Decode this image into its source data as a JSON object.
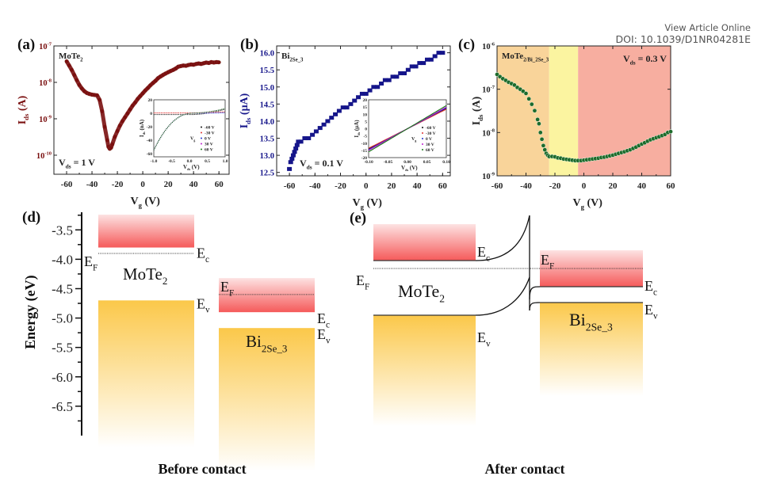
{
  "header": {
    "view_article": "View Article Online",
    "doi": "DOI: 10.1039/D1NR04281E"
  },
  "chart_data": [
    {
      "panel": "(a)",
      "type": "scatter",
      "title": "MoTe₂",
      "annotation": "V_ds = 1 V",
      "xlabel": "V_g (V)",
      "ylabel": "I_ds (A)",
      "yscale": "log",
      "xlim": [
        -70,
        68
      ],
      "ylim": [
        3e-11,
        1e-07
      ],
      "xticks": [
        -60,
        -40,
        -20,
        0,
        20,
        40,
        60
      ],
      "yticks": [
        "10^-7",
        "10^-8",
        "10^-9",
        "10^-10"
      ],
      "color": "#7a0f0f",
      "series": [
        {
          "name": "MoTe2",
          "x": [
            -60,
            -58,
            -56,
            -54,
            -52,
            -50,
            -48,
            -46,
            -44,
            -42,
            -40,
            -38,
            -36,
            -34,
            -32,
            -30,
            -28,
            -27,
            -26,
            -25,
            -24,
            -22,
            -20,
            -18,
            -16,
            -14,
            -12,
            -10,
            -8,
            -6,
            -4,
            -2,
            0,
            2,
            4,
            6,
            8,
            10,
            12,
            14,
            16,
            18,
            20,
            22,
            24,
            26,
            28,
            30,
            32,
            34,
            36,
            38,
            40,
            42,
            44,
            46,
            48,
            50,
            52,
            54,
            56,
            58,
            60
          ],
          "y": [
            3.8e-08,
            2.9e-08,
            2.2e-08,
            1.6e-08,
            1.15e-08,
            8.5e-09,
            6.8e-09,
            5.7e-09,
            5.1e-09,
            4.8e-09,
            4.6e-09,
            4.5e-09,
            4.4e-09,
            3.3e-09,
            1.6e-09,
            6e-10,
            2.6e-10,
            1.7e-10,
            1.5e-10,
            1.6e-10,
            2e-10,
            3.2e-10,
            4.6e-10,
            6.5e-10,
            8.6e-10,
            1.1e-09,
            1.4e-09,
            1.8e-09,
            2.3e-09,
            2.8e-09,
            3.5e-09,
            4.2e-09,
            5e-09,
            6e-09,
            7e-09,
            8.3e-09,
            9.6e-09,
            1.1e-08,
            1.3e-08,
            1.45e-08,
            1.6e-08,
            1.75e-08,
            1.9e-08,
            2.05e-08,
            2.2e-08,
            2.4e-08,
            2.7e-08,
            2.8e-08,
            2.9e-08,
            2.85e-08,
            3e-08,
            3.1e-08,
            3.05e-08,
            3.2e-08,
            3.3e-08,
            3.2e-08,
            3.35e-08,
            3.5e-08,
            3.4e-08,
            3.6e-08,
            3.5e-08,
            3.6e-08,
            3.55e-08
          ]
        }
      ],
      "inset": {
        "xlabel": "V_ds (V)",
        "ylabel": "I_ds (nA)",
        "xlim": [
          -1.0,
          1.0
        ],
        "ylim": [
          -65,
          20
        ],
        "xticks": [
          "-1.0",
          "-0.5",
          "0.0",
          "0.5",
          "1.0"
        ],
        "yticks": [
          "20",
          "0",
          "-20",
          "-40",
          "-60"
        ],
        "legend_title": "V_g",
        "legend": [
          {
            "label": "-60 V",
            "color": "#111111"
          },
          {
            "label": "-30 V",
            "color": "#e03030"
          },
          {
            "label": "0 V",
            "color": "#2030d0"
          },
          {
            "label": "30 V",
            "color": "#c020d0"
          },
          {
            "label": "60 V",
            "color": "#1a7a1a"
          }
        ]
      }
    },
    {
      "panel": "(b)",
      "type": "scatter",
      "title": "Bi₂Se₃",
      "annotation": "V_ds = 0.1 V",
      "xlabel": "V_g (V)",
      "ylabel": "I_ds (μA)",
      "xlim": [
        -70,
        66
      ],
      "ylim": [
        12.4,
        16.2
      ],
      "xticks": [
        -60,
        -40,
        -20,
        0,
        20,
        40,
        60
      ],
      "yticks": [
        12.5,
        13.0,
        13.5,
        14.0,
        14.5,
        15.0,
        15.5,
        16.0
      ],
      "color": "#15158a",
      "series": [
        {
          "name": "Bi2Se3",
          "x": [
            -60,
            -59,
            -58,
            -57,
            -56,
            -55,
            -54,
            -53,
            -51,
            -48,
            -45,
            -42,
            -39,
            -36,
            -33,
            -30,
            -27,
            -24,
            -21,
            -18,
            -15,
            -12,
            -9,
            -6,
            -3,
            0,
            3,
            6,
            9,
            12,
            15,
            18,
            21,
            24,
            27,
            30,
            33,
            36,
            39,
            42,
            45,
            48,
            51,
            54,
            57,
            60
          ],
          "y": [
            12.6,
            12.8,
            12.9,
            13.0,
            13.1,
            13.2,
            13.3,
            13.4,
            13.4,
            13.5,
            13.5,
            13.6,
            13.7,
            13.8,
            13.9,
            14.0,
            14.1,
            14.2,
            14.3,
            14.4,
            14.4,
            14.5,
            14.6,
            14.7,
            14.8,
            14.8,
            14.9,
            15.0,
            15.0,
            15.1,
            15.2,
            15.2,
            15.3,
            15.3,
            15.4,
            15.4,
            15.5,
            15.6,
            15.6,
            15.7,
            15.7,
            15.8,
            15.8,
            15.9,
            16.0,
            16.0
          ]
        }
      ],
      "inset": {
        "xlabel": "V_ds (V)",
        "ylabel": "I_ds (μA)",
        "xlim": [
          -0.1,
          0.1
        ],
        "ylim": [
          -20,
          20
        ],
        "xticks": [
          "-0.10",
          "-0.05",
          "0.00",
          "0.05",
          "0.10"
        ],
        "yticks": [
          "20",
          "15",
          "10",
          "5",
          "0",
          "-5",
          "-10",
          "-15",
          "-20"
        ],
        "legend_title": "V_g",
        "legend": [
          {
            "label": "-60 V",
            "color": "#111111"
          },
          {
            "label": "-30 V",
            "color": "#e03030"
          },
          {
            "label": "0 V",
            "color": "#2030d0"
          },
          {
            "label": "30 V",
            "color": "#c020d0"
          },
          {
            "label": "60 V",
            "color": "#1a7a1a"
          }
        ]
      }
    },
    {
      "panel": "(c)",
      "type": "scatter",
      "title": "MoTe₂/Bi₂Se₃",
      "annotation": "V_ds = 0.3 V",
      "xlabel": "V_g (V)",
      "ylabel": "I_ds (A)",
      "yscale": "log",
      "xlim": [
        -60,
        60
      ],
      "ylim": [
        1e-09,
        1e-06
      ],
      "xticks": [
        -60,
        -40,
        -20,
        0,
        20,
        40,
        60
      ],
      "yticks": [
        "10^-6",
        "10^-7",
        "10^-8",
        "10^-9"
      ],
      "regions": [
        {
          "from": -60,
          "to": -24,
          "color": "#f9d49a"
        },
        {
          "from": -24,
          "to": -4,
          "color": "#fbf4a0"
        },
        {
          "from": -4,
          "to": 60,
          "color": "#f7aea0"
        }
      ],
      "color": "#1d6b2c",
      "series": [
        {
          "name": "MoTe2/Bi2Se3",
          "x": [
            -60,
            -58,
            -56,
            -54,
            -52,
            -50,
            -48,
            -46,
            -44,
            -42,
            -40,
            -38,
            -36,
            -34,
            -32,
            -31,
            -30,
            -29,
            -28,
            -27,
            -26,
            -25,
            -24,
            -22,
            -20,
            -18,
            -16,
            -14,
            -12,
            -10,
            -8,
            -6,
            -4,
            -2,
            0,
            2,
            4,
            6,
            8,
            10,
            12,
            14,
            16,
            18,
            20,
            22,
            24,
            26,
            28,
            30,
            32,
            34,
            36,
            38,
            40,
            42,
            44,
            46,
            48,
            50,
            52,
            54,
            56,
            58,
            60
          ],
          "y": [
            2.2e-07,
            1.95e-07,
            1.75e-07,
            1.6e-07,
            1.45e-07,
            1.35e-07,
            1.25e-07,
            1.1e-07,
            1e-07,
            9e-08,
            8e-08,
            6e-08,
            4.5e-08,
            3.2e-08,
            2e-08,
            1.6e-08,
            1e-08,
            7e-09,
            5e-09,
            4e-09,
            3.3e-09,
            3e-09,
            2.8e-09,
            2.8e-09,
            2.75e-09,
            2.6e-09,
            2.55e-09,
            2.45e-09,
            2.4e-09,
            2.35e-09,
            2.3e-09,
            2.25e-09,
            2.25e-09,
            2.25e-09,
            2.3e-09,
            2.35e-09,
            2.4e-09,
            2.45e-09,
            2.5e-09,
            2.55e-09,
            2.65e-09,
            2.7e-09,
            2.8e-09,
            2.9e-09,
            3e-09,
            3.15e-09,
            3.3e-09,
            3.45e-09,
            3.6e-09,
            3.8e-09,
            4e-09,
            4.3e-09,
            4.6e-09,
            5e-09,
            5.4e-09,
            5.8e-09,
            6.3e-09,
            6.8e-09,
            7.2e-09,
            7.6e-09,
            8e-09,
            8.5e-09,
            9e-09,
            1e-08,
            1.05e-08
          ]
        }
      ]
    },
    {
      "panel": "(d)",
      "type": "diagram",
      "caption": "Before contact",
      "ylabel": "Energy (eV)",
      "ylim": [
        -7.0,
        -3.2
      ],
      "yticks": [
        -3.5,
        -4.0,
        -4.5,
        -5.0,
        -5.5,
        -6.0,
        -6.5
      ],
      "materials": [
        {
          "name": "MoTe₂",
          "Ec": -3.8,
          "Ev": -4.7,
          "EF": -3.9,
          "labels": {
            "Ec": "E_c",
            "Ev": "E_v",
            "EF": "E_F"
          }
        },
        {
          "name": "Bi₂Se₃",
          "Ec": -4.9,
          "Ev": -5.17,
          "EF": -4.6,
          "labels": {
            "Ec": "E_c",
            "Ev": "E_v",
            "EF": "E_F"
          }
        }
      ]
    },
    {
      "panel": "(e)",
      "type": "diagram",
      "caption": "After contact",
      "materials": [
        {
          "name": "MoTe₂",
          "labels": {
            "Ec": "E_c",
            "Ev": "E_v",
            "EF": "E_F"
          }
        },
        {
          "name": "Bi₂Se₃",
          "labels": {
            "Ec": "E_c",
            "Ev": "E_v",
            "EF": "E_F"
          }
        }
      ]
    }
  ]
}
